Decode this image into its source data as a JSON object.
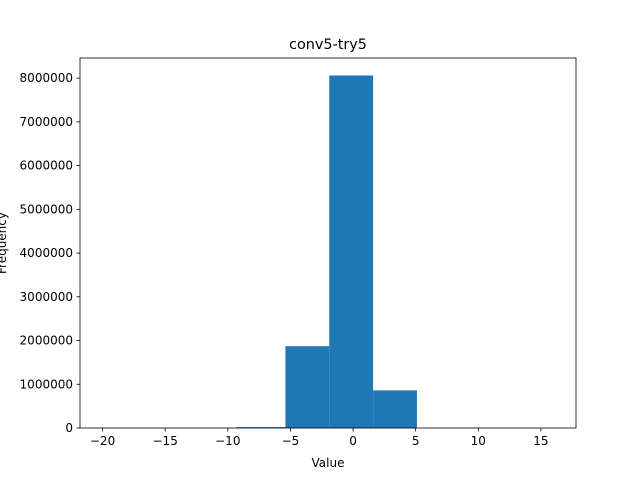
{
  "chart_data": {
    "type": "bar",
    "title": "conv5-try5",
    "xlabel": "Value",
    "ylabel": "Frequency",
    "xlim": [
      -21.8,
      17.8
    ],
    "ylim": [
      0,
      8460000
    ],
    "bin_edges": [
      -19.8,
      -16.3,
      -12.8,
      -9.3,
      -5.4,
      -1.9,
      1.6,
      5.1,
      8.6,
      12.1,
      15.8
    ],
    "values": [
      0,
      0,
      0,
      20000,
      1870000,
      8060000,
      860000,
      0,
      0,
      0
    ],
    "x_ticks": [
      -20,
      -15,
      -10,
      -5,
      0,
      5,
      10,
      15
    ],
    "x_tick_labels": [
      "−20",
      "−15",
      "−10",
      "−5",
      "0",
      "5",
      "10",
      "15"
    ],
    "y_ticks": [
      0,
      1000000,
      2000000,
      3000000,
      4000000,
      5000000,
      6000000,
      7000000,
      8000000
    ],
    "y_tick_labels": [
      "0",
      "1000000",
      "2000000",
      "3000000",
      "4000000",
      "5000000",
      "6000000",
      "7000000",
      "8000000"
    ],
    "bar_color": "#1f77b4",
    "grid": false,
    "legend": "none"
  }
}
